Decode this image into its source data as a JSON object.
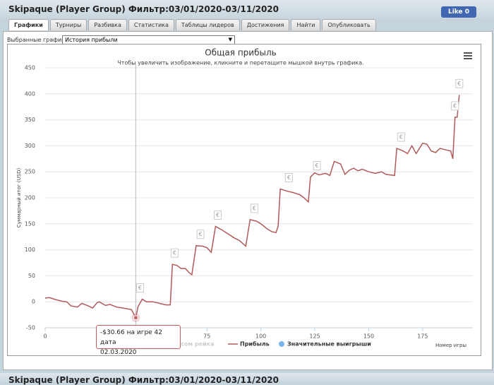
{
  "header": {
    "title": "Skipaque (Player Group) Фильтр:03/01/2020-03/11/2020",
    "like": "Like 0"
  },
  "tabs": [
    "Графики",
    "Турниры",
    "Разбивка",
    "Статистика",
    "Таблицы лидеров",
    "Достижения",
    "Найти",
    "Опубликовать"
  ],
  "selector": {
    "label": "Выбранные графики:",
    "value": "История прибыли"
  },
  "chart_data": {
    "type": "line",
    "title": "Общая прибыль",
    "subtitle": "Чтобы увеличить изображение, кликните и перетащите мышкой внутрь графика.",
    "y_label": "Суммарный итог (USD)",
    "x_label": "Номер игры",
    "xlim": [
      0,
      195
    ],
    "xticks": [
      0,
      25,
      50,
      75,
      100,
      125,
      150,
      175
    ],
    "ylim": [
      -50,
      450
    ],
    "yticks": [
      -50,
      0,
      50,
      100,
      150,
      200,
      250,
      300,
      350,
      400,
      450
    ],
    "grid": true,
    "series": [
      {
        "name": "Прибыль",
        "color": "#b05a5a",
        "x": [
          0,
          2,
          5,
          8,
          10,
          12,
          15,
          17,
          20,
          22,
          24,
          25,
          28,
          30,
          33,
          36,
          40,
          42,
          43,
          45,
          47,
          50,
          53,
          56,
          58,
          59,
          61,
          63,
          65,
          67,
          68,
          70,
          73,
          75,
          77,
          79,
          82,
          85,
          88,
          90,
          93,
          95,
          98,
          100,
          103,
          105,
          107,
          108,
          109,
          112,
          115,
          118,
          120,
          122,
          123,
          125,
          127,
          130,
          132,
          134,
          137,
          139,
          141,
          143,
          145,
          147,
          150,
          153,
          156,
          158,
          162,
          163,
          166,
          168,
          170,
          172,
          175,
          177,
          179,
          181,
          183,
          185,
          188,
          189,
          190,
          191,
          192
        ],
        "values": [
          7,
          8,
          4,
          1,
          0,
          -8,
          -10,
          -3,
          -8,
          -12,
          -2,
          0,
          -7,
          -5,
          -10,
          -12,
          -15,
          -30.66,
          -10,
          5,
          0,
          0,
          -3,
          -6,
          -6,
          72,
          70,
          64,
          64,
          55,
          52,
          108,
          107,
          104,
          95,
          145,
          138,
          130,
          122,
          118,
          107,
          158,
          155,
          150,
          140,
          135,
          133,
          145,
          217,
          213,
          210,
          206,
          200,
          192,
          240,
          248,
          244,
          247,
          243,
          270,
          265,
          245,
          253,
          257,
          252,
          255,
          250,
          247,
          250,
          245,
          243,
          295,
          290,
          285,
          300,
          285,
          305,
          303,
          290,
          287,
          295,
          293,
          290,
          275,
          355,
          355,
          398
        ]
      },
      {
        "name": "Значительные выигрыши",
        "color": "#7cb5ec",
        "marker_symbol": "€",
        "x": [
          44,
          60,
          72,
          80,
          97,
          113,
          126,
          165,
          190,
          192
        ],
        "values": [
          5,
          72,
          108,
          145,
          158,
          217,
          240,
          295,
          355,
          398
        ]
      }
    ],
    "hidden_legend_item": "бонусом рейка",
    "tooltip": {
      "x": 42,
      "y": -30.66,
      "lines": [
        "-$30.66 на игре 42 дата",
        "02.03.2020"
      ]
    }
  },
  "footer_header": {
    "title": "Skipaque (Player Group) Фильтр:03/01/2020-03/11/2020"
  }
}
